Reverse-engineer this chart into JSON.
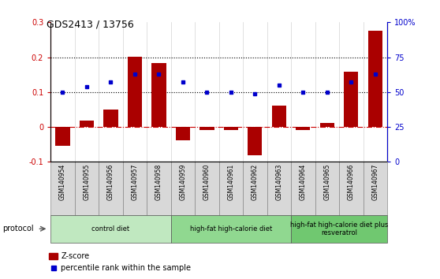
{
  "title": "GDS2413 / 13756",
  "samples": [
    "GSM140954",
    "GSM140955",
    "GSM140956",
    "GSM140957",
    "GSM140958",
    "GSM140959",
    "GSM140960",
    "GSM140961",
    "GSM140962",
    "GSM140963",
    "GSM140964",
    "GSM140965",
    "GSM140966",
    "GSM140967"
  ],
  "zscore": [
    -0.055,
    0.018,
    0.05,
    0.202,
    0.183,
    -0.038,
    -0.01,
    -0.01,
    -0.082,
    0.062,
    -0.008,
    0.012,
    0.158,
    0.275
  ],
  "pct_rank": [
    50,
    54,
    57,
    63,
    63,
    57,
    50,
    50,
    49,
    55,
    50,
    50,
    57,
    63
  ],
  "groups": [
    {
      "label": "control diet",
      "start": 0,
      "end": 5,
      "color": "#c0e8c0"
    },
    {
      "label": "high-fat high-calorie diet",
      "start": 5,
      "end": 10,
      "color": "#90d890"
    },
    {
      "label": "high-fat high-calorie diet plus\nresveratrol",
      "start": 10,
      "end": 14,
      "color": "#70c870"
    }
  ],
  "ylim_left": [
    -0.1,
    0.3
  ],
  "ylim_right": [
    0,
    100
  ],
  "bar_color": "#aa0000",
  "square_color": "#0000cc",
  "zero_line_color": "#cc0000",
  "label_bg": "#d8d8d8"
}
